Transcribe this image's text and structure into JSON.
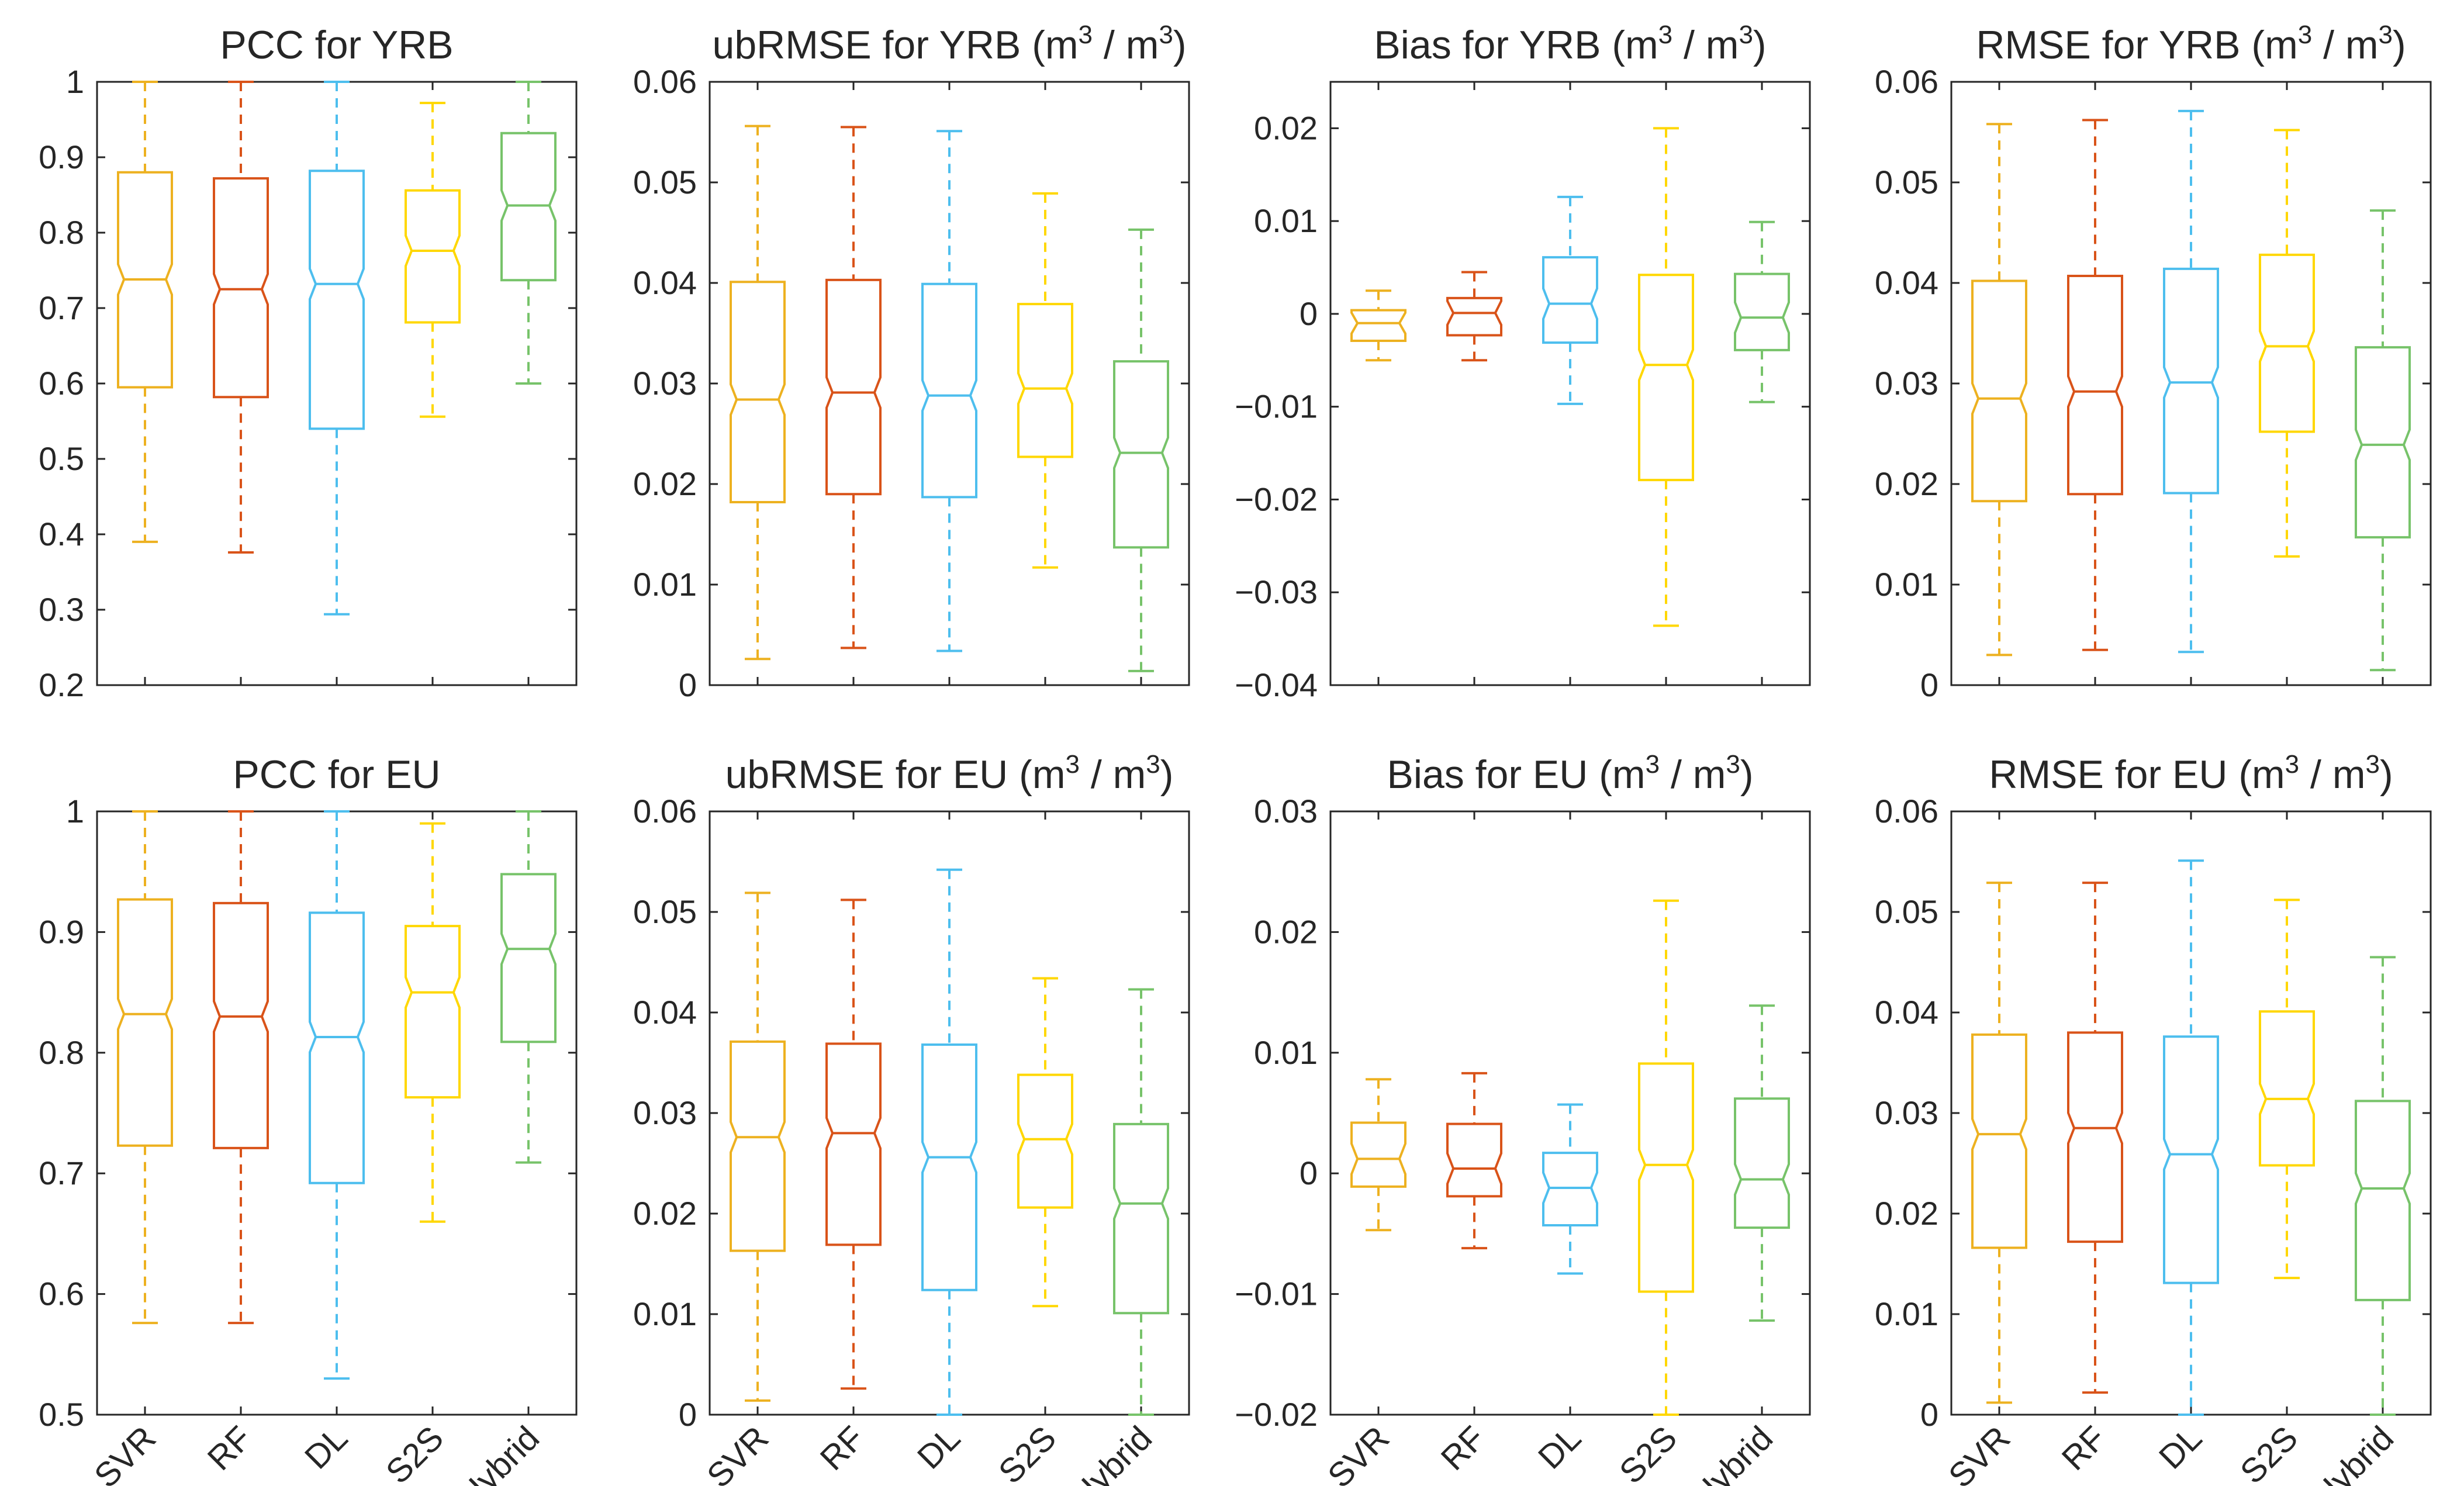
{
  "chart_data": [
    {
      "type": "box",
      "title": "PCC for YRB",
      "title_unit": "",
      "yticks": [
        "1",
        "0.9",
        "0.8",
        "0.7",
        "0.6",
        "0.5",
        "0.4",
        "0.3",
        "0.2"
      ],
      "ylim": [
        0.2,
        1.0
      ],
      "categories": [
        "SVR",
        "RF",
        "DL",
        "S2S",
        "Hybrid"
      ],
      "show_xlabels": false,
      "boxes": [
        {
          "name": "SVR",
          "min": 0.39,
          "q1": 0.595,
          "median": 0.738,
          "q3": 0.88,
          "max": 1.0
        },
        {
          "name": "RF",
          "min": 0.376,
          "q1": 0.582,
          "median": 0.725,
          "q3": 0.872,
          "max": 1.0
        },
        {
          "name": "DL",
          "min": 0.294,
          "q1": 0.54,
          "median": 0.732,
          "q3": 0.882,
          "max": 1.0
        },
        {
          "name": "S2S",
          "min": 0.556,
          "q1": 0.681,
          "median": 0.776,
          "q3": 0.856,
          "max": 0.972
        },
        {
          "name": "Hybrid",
          "min": 0.6,
          "q1": 0.737,
          "median": 0.836,
          "q3": 0.932,
          "max": 1.0
        }
      ]
    },
    {
      "type": "box",
      "title": "ubRMSE for YRB",
      "title_unit": "m3/m3",
      "yticks": [
        "0.06",
        "0.05",
        "0.04",
        "0.03",
        "0.02",
        "0.01",
        "0"
      ],
      "ylim": [
        0,
        0.06
      ],
      "categories": [
        "SVR",
        "RF",
        "DL",
        "S2S",
        "Hybrid"
      ],
      "show_xlabels": false,
      "boxes": [
        {
          "name": "SVR",
          "min": 0.0026,
          "q1": 0.0182,
          "median": 0.0284,
          "q3": 0.0401,
          "max": 0.0556
        },
        {
          "name": "RF",
          "min": 0.0037,
          "q1": 0.019,
          "median": 0.0291,
          "q3": 0.0403,
          "max": 0.0555
        },
        {
          "name": "DL",
          "min": 0.0034,
          "q1": 0.0187,
          "median": 0.0288,
          "q3": 0.0399,
          "max": 0.0551
        },
        {
          "name": "S2S",
          "min": 0.0117,
          "q1": 0.0227,
          "median": 0.0295,
          "q3": 0.0379,
          "max": 0.0489
        },
        {
          "name": "Hybrid",
          "min": 0.0014,
          "q1": 0.0137,
          "median": 0.0231,
          "q3": 0.0322,
          "max": 0.0453
        }
      ]
    },
    {
      "type": "box",
      "title": "Bias for YRB",
      "title_unit": "m3/m3",
      "yticks": [
        "0.02",
        "0.01",
        "0",
        "−0.01",
        "−0.02",
        "−0.03",
        "−0.04"
      ],
      "ylim": [
        -0.04,
        0.025
      ],
      "categories": [
        "SVR",
        "RF",
        "DL",
        "S2S",
        "Hybrid"
      ],
      "show_xlabels": false,
      "boxes": [
        {
          "name": "SVR",
          "min": -0.005,
          "q1": -0.0029,
          "median": -0.001,
          "q3": 0.0004,
          "max": 0.0025
        },
        {
          "name": "RF",
          "min": -0.005,
          "q1": -0.0023,
          "median": 0.0001,
          "q3": 0.0017,
          "max": 0.0045
        },
        {
          "name": "DL",
          "min": -0.0097,
          "q1": -0.0031,
          "median": 0.0011,
          "q3": 0.0061,
          "max": 0.0126
        },
        {
          "name": "S2S",
          "min": -0.0336,
          "q1": -0.0179,
          "median": -0.0055,
          "q3": 0.0042,
          "max": 0.02
        },
        {
          "name": "Hybrid",
          "min": -0.0095,
          "q1": -0.0039,
          "median": -0.0004,
          "q3": 0.0043,
          "max": 0.0099
        }
      ]
    },
    {
      "type": "box",
      "title": "RMSE for YRB",
      "title_unit": "m3/m3",
      "yticks": [
        "0.06",
        "0.05",
        "0.04",
        "0.03",
        "0.02",
        "0.01",
        "0"
      ],
      "ylim": [
        0,
        0.06
      ],
      "categories": [
        "SVR",
        "RF",
        "DL",
        "S2S",
        "Hybrid"
      ],
      "show_xlabels": false,
      "boxes": [
        {
          "name": "SVR",
          "min": 0.003,
          "q1": 0.0183,
          "median": 0.0285,
          "q3": 0.0402,
          "max": 0.0558
        },
        {
          "name": "RF",
          "min": 0.0035,
          "q1": 0.019,
          "median": 0.0292,
          "q3": 0.0407,
          "max": 0.0562
        },
        {
          "name": "DL",
          "min": 0.0033,
          "q1": 0.0191,
          "median": 0.0301,
          "q3": 0.0414,
          "max": 0.0571
        },
        {
          "name": "S2S",
          "min": 0.0128,
          "q1": 0.0252,
          "median": 0.0337,
          "q3": 0.0428,
          "max": 0.0552
        },
        {
          "name": "Hybrid",
          "min": 0.0015,
          "q1": 0.0147,
          "median": 0.0239,
          "q3": 0.0336,
          "max": 0.0472
        }
      ]
    },
    {
      "type": "box",
      "title": "PCC for EU",
      "title_unit": "",
      "yticks": [
        "1",
        "0.9",
        "0.8",
        "0.7",
        "0.6",
        "0.5"
      ],
      "ylim": [
        0.5,
        1.0
      ],
      "categories": [
        "SVR",
        "RF",
        "DL",
        "S2S",
        "Hybrid"
      ],
      "show_xlabels": true,
      "boxes": [
        {
          "name": "SVR",
          "min": 0.576,
          "q1": 0.723,
          "median": 0.832,
          "q3": 0.927,
          "max": 1.0
        },
        {
          "name": "RF",
          "min": 0.576,
          "q1": 0.721,
          "median": 0.83,
          "q3": 0.924,
          "max": 1.0
        },
        {
          "name": "DL",
          "min": 0.53,
          "q1": 0.692,
          "median": 0.813,
          "q3": 0.916,
          "max": 1.0
        },
        {
          "name": "S2S",
          "min": 0.66,
          "q1": 0.763,
          "median": 0.85,
          "q3": 0.905,
          "max": 0.99
        },
        {
          "name": "Hybrid",
          "min": 0.709,
          "q1": 0.809,
          "median": 0.886,
          "q3": 0.948,
          "max": 1.0
        }
      ]
    },
    {
      "type": "box",
      "title": "ubRMSE for EU",
      "title_unit": "m3/m3",
      "yticks": [
        "0.06",
        "0.05",
        "0.04",
        "0.03",
        "0.02",
        "0.01",
        "0"
      ],
      "ylim": [
        0,
        0.06
      ],
      "categories": [
        "SVR",
        "RF",
        "DL",
        "S2S",
        "Hybrid"
      ],
      "show_xlabels": true,
      "boxes": [
        {
          "name": "SVR",
          "min": 0.0014,
          "q1": 0.0163,
          "median": 0.0276,
          "q3": 0.0371,
          "max": 0.0519
        },
        {
          "name": "RF",
          "min": 0.0026,
          "q1": 0.0169,
          "median": 0.028,
          "q3": 0.0369,
          "max": 0.0512
        },
        {
          "name": "DL",
          "min": 0.0,
          "q1": 0.0124,
          "median": 0.0256,
          "q3": 0.0368,
          "max": 0.0542
        },
        {
          "name": "S2S",
          "min": 0.0108,
          "q1": 0.0206,
          "median": 0.0274,
          "q3": 0.0338,
          "max": 0.0434
        },
        {
          "name": "Hybrid",
          "min": 0.0,
          "q1": 0.0101,
          "median": 0.021,
          "q3": 0.0289,
          "max": 0.0423
        }
      ]
    },
    {
      "type": "box",
      "title": "Bias for EU",
      "title_unit": "m3/m3",
      "yticks": [
        "0.03",
        "0.02",
        "0.01",
        "0",
        "−0.01",
        "−0.02"
      ],
      "ylim": [
        -0.02,
        0.03
      ],
      "categories": [
        "SVR",
        "RF",
        "DL",
        "S2S",
        "Hybrid"
      ],
      "show_xlabels": true,
      "boxes": [
        {
          "name": "SVR",
          "min": -0.0047,
          "q1": -0.0011,
          "median": 0.0012,
          "q3": 0.0042,
          "max": 0.0078
        },
        {
          "name": "RF",
          "min": -0.0062,
          "q1": -0.0019,
          "median": 0.0004,
          "q3": 0.0041,
          "max": 0.0083
        },
        {
          "name": "DL",
          "min": -0.0083,
          "q1": -0.0043,
          "median": -0.0012,
          "q3": 0.0017,
          "max": 0.0057
        },
        {
          "name": "S2S",
          "min": -0.02,
          "q1": -0.0098,
          "median": 0.0007,
          "q3": 0.0091,
          "max": 0.0226
        },
        {
          "name": "Hybrid",
          "min": -0.0122,
          "q1": -0.0045,
          "median": -0.0005,
          "q3": 0.0062,
          "max": 0.0139
        }
      ]
    },
    {
      "type": "box",
      "title": "RMSE for EU",
      "title_unit": "m3/m3",
      "yticks": [
        "0.06",
        "0.05",
        "0.04",
        "0.03",
        "0.02",
        "0.01",
        "0"
      ],
      "ylim": [
        0,
        0.06
      ],
      "categories": [
        "SVR",
        "RF",
        "DL",
        "S2S",
        "Hybrid"
      ],
      "show_xlabels": true,
      "boxes": [
        {
          "name": "SVR",
          "min": 0.0012,
          "q1": 0.0166,
          "median": 0.0279,
          "q3": 0.0378,
          "max": 0.0529
        },
        {
          "name": "RF",
          "min": 0.0022,
          "q1": 0.0172,
          "median": 0.0285,
          "q3": 0.038,
          "max": 0.0529
        },
        {
          "name": "DL",
          "min": 0.0,
          "q1": 0.0131,
          "median": 0.0259,
          "q3": 0.0376,
          "max": 0.0551
        },
        {
          "name": "S2S",
          "min": 0.0136,
          "q1": 0.0248,
          "median": 0.0314,
          "q3": 0.0401,
          "max": 0.0512
        },
        {
          "name": "Hybrid",
          "min": 0.0,
          "q1": 0.0114,
          "median": 0.0225,
          "q3": 0.0312,
          "max": 0.0455
        }
      ]
    }
  ],
  "series_colors": {
    "SVR": "#EDB120",
    "RF": "#D95319",
    "DL": "#4DBEEE",
    "S2S": "#FFD700",
    "Hybrid": "#77C36A"
  }
}
